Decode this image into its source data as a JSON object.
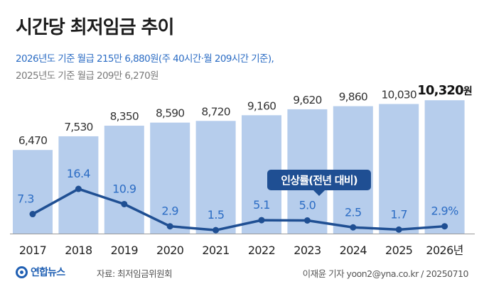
{
  "title": "시간당 최저임금 추이",
  "subtitle_line1": "2026년도 기준 월급 215만 6,880원(주 40시간·월 209시간 기준),",
  "subtitle_line2": "2025년도 기준 월급 209만 6,270원",
  "source": "자료: 최저임금위원회",
  "credit": "이재윤 기자 yoon2@yna.co.kr / 20250710",
  "logo_text": "연합뉴스",
  "colors": {
    "bar": "#b6cdec",
    "line": "#1f4f93",
    "line_label": "#2b6cc4",
    "bar_label": "#333333",
    "callout_bg": "#1f4f93"
  },
  "chart_data": {
    "type": "bar",
    "title": "시간당 최저임금 추이",
    "categories": [
      "2017",
      "2018",
      "2019",
      "2020",
      "2021",
      "2022",
      "2023",
      "2024",
      "2025",
      "2026년"
    ],
    "bar_value_labels": [
      "6,470",
      "7,530",
      "8,350",
      "8,590",
      "8,720",
      "9,160",
      "9,620",
      "9,860",
      "10,030",
      "10,320"
    ],
    "last_bar_unit": "원",
    "series": [
      {
        "name": "시간당 최저임금(원)",
        "type": "bar",
        "values": [
          6470,
          7530,
          8350,
          8590,
          8720,
          9160,
          9620,
          9860,
          10030,
          10320
        ]
      },
      {
        "name": "인상률(전년 대비)",
        "type": "line",
        "values": [
          7.3,
          16.4,
          10.9,
          2.9,
          1.5,
          5.1,
          5.0,
          2.5,
          1.7,
          2.9
        ],
        "value_labels": [
          "7.3",
          "16.4",
          "10.9",
          "2.9",
          "1.5",
          "5.1",
          "5.0",
          "2.5",
          "1.7",
          "2.9%"
        ]
      }
    ],
    "callout": "인상률(전년 대비)",
    "xlabel": "",
    "ylabel": ""
  }
}
